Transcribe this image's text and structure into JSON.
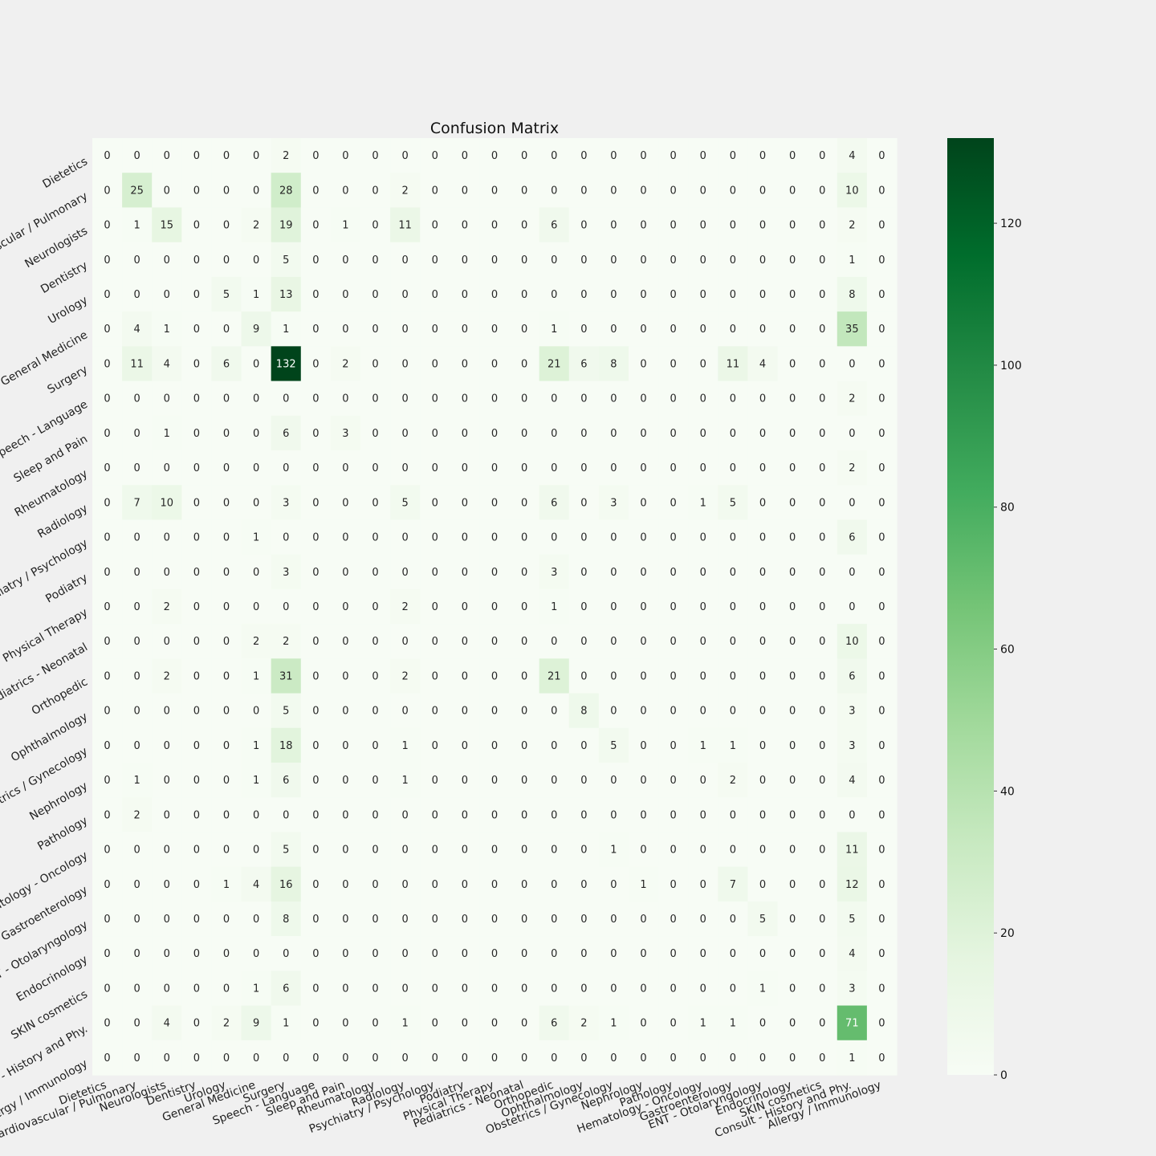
{
  "chart_data": {
    "type": "heatmap",
    "title": "Confusion Matrix",
    "xlabel": "",
    "ylabel": "",
    "labels": [
      "Dietetics",
      "Cardiovascular / Pulmonary",
      "Neurologists",
      "Dentistry",
      "Urology",
      "General Medicine",
      "Surgery",
      "Speech - Language",
      "Sleep and Pain",
      "Rheumatology",
      "Radiology",
      "Psychiatry / Psychology",
      "Podiatry",
      "Physical Therapy",
      "Pediatrics - Neonatal",
      "Orthopedic",
      "Ophthalmology",
      "Obstetrics / Gynecology",
      "Nephrology",
      "Pathology",
      "Hematology - Oncology",
      "Gastroenterology",
      "ENT - Otolaryngology",
      "Endocrinology",
      "SKIN cosmetics",
      "Consult - History and Phy.",
      "Allergy / Immunology"
    ],
    "matrix": [
      [
        0,
        0,
        0,
        0,
        0,
        0,
        2,
        0,
        0,
        0,
        0,
        0,
        0,
        0,
        0,
        0,
        0,
        0,
        0,
        0,
        0,
        0,
        0,
        0,
        0,
        4,
        0
      ],
      [
        0,
        25,
        0,
        0,
        0,
        0,
        28,
        0,
        0,
        0,
        2,
        0,
        0,
        0,
        0,
        0,
        0,
        0,
        0,
        0,
        0,
        0,
        0,
        0,
        0,
        10,
        0
      ],
      [
        0,
        1,
        15,
        0,
        0,
        2,
        19,
        0,
        1,
        0,
        11,
        0,
        0,
        0,
        0,
        6,
        0,
        0,
        0,
        0,
        0,
        0,
        0,
        0,
        0,
        2,
        0
      ],
      [
        0,
        0,
        0,
        0,
        0,
        0,
        5,
        0,
        0,
        0,
        0,
        0,
        0,
        0,
        0,
        0,
        0,
        0,
        0,
        0,
        0,
        0,
        0,
        0,
        0,
        1,
        0
      ],
      [
        0,
        0,
        0,
        0,
        5,
        1,
        13,
        0,
        0,
        0,
        0,
        0,
        0,
        0,
        0,
        0,
        0,
        0,
        0,
        0,
        0,
        0,
        0,
        0,
        0,
        8,
        0
      ],
      [
        0,
        4,
        1,
        0,
        0,
        9,
        1,
        0,
        0,
        0,
        0,
        0,
        0,
        0,
        0,
        1,
        0,
        0,
        0,
        0,
        0,
        0,
        0,
        0,
        0,
        35,
        0
      ],
      [
        0,
        11,
        4,
        0,
        6,
        0,
        132,
        0,
        2,
        0,
        0,
        0,
        0,
        0,
        0,
        21,
        6,
        8,
        0,
        0,
        0,
        11,
        4,
        0,
        0,
        0,
        0
      ],
      [
        0,
        0,
        0,
        0,
        0,
        0,
        0,
        0,
        0,
        0,
        0,
        0,
        0,
        0,
        0,
        0,
        0,
        0,
        0,
        0,
        0,
        0,
        0,
        0,
        0,
        2,
        0
      ],
      [
        0,
        0,
        1,
        0,
        0,
        0,
        6,
        0,
        3,
        0,
        0,
        0,
        0,
        0,
        0,
        0,
        0,
        0,
        0,
        0,
        0,
        0,
        0,
        0,
        0,
        0,
        0
      ],
      [
        0,
        0,
        0,
        0,
        0,
        0,
        0,
        0,
        0,
        0,
        0,
        0,
        0,
        0,
        0,
        0,
        0,
        0,
        0,
        0,
        0,
        0,
        0,
        0,
        0,
        2,
        0
      ],
      [
        0,
        7,
        10,
        0,
        0,
        0,
        3,
        0,
        0,
        0,
        5,
        0,
        0,
        0,
        0,
        6,
        0,
        3,
        0,
        0,
        1,
        5,
        0,
        0,
        0,
        0,
        0
      ],
      [
        0,
        0,
        0,
        0,
        0,
        1,
        0,
        0,
        0,
        0,
        0,
        0,
        0,
        0,
        0,
        0,
        0,
        0,
        0,
        0,
        0,
        0,
        0,
        0,
        0,
        6,
        0
      ],
      [
        0,
        0,
        0,
        0,
        0,
        0,
        3,
        0,
        0,
        0,
        0,
        0,
        0,
        0,
        0,
        3,
        0,
        0,
        0,
        0,
        0,
        0,
        0,
        0,
        0,
        0,
        0
      ],
      [
        0,
        0,
        2,
        0,
        0,
        0,
        0,
        0,
        0,
        0,
        2,
        0,
        0,
        0,
        0,
        1,
        0,
        0,
        0,
        0,
        0,
        0,
        0,
        0,
        0,
        0,
        0
      ],
      [
        0,
        0,
        0,
        0,
        0,
        2,
        2,
        0,
        0,
        0,
        0,
        0,
        0,
        0,
        0,
        0,
        0,
        0,
        0,
        0,
        0,
        0,
        0,
        0,
        0,
        10,
        0
      ],
      [
        0,
        0,
        2,
        0,
        0,
        1,
        31,
        0,
        0,
        0,
        2,
        0,
        0,
        0,
        0,
        21,
        0,
        0,
        0,
        0,
        0,
        0,
        0,
        0,
        0,
        6,
        0
      ],
      [
        0,
        0,
        0,
        0,
        0,
        0,
        5,
        0,
        0,
        0,
        0,
        0,
        0,
        0,
        0,
        0,
        8,
        0,
        0,
        0,
        0,
        0,
        0,
        0,
        0,
        3,
        0
      ],
      [
        0,
        0,
        0,
        0,
        0,
        1,
        18,
        0,
        0,
        0,
        1,
        0,
        0,
        0,
        0,
        0,
        0,
        5,
        0,
        0,
        1,
        1,
        0,
        0,
        0,
        3,
        0
      ],
      [
        0,
        1,
        0,
        0,
        0,
        1,
        6,
        0,
        0,
        0,
        1,
        0,
        0,
        0,
        0,
        0,
        0,
        0,
        0,
        0,
        0,
        2,
        0,
        0,
        0,
        4,
        0
      ],
      [
        0,
        2,
        0,
        0,
        0,
        0,
        0,
        0,
        0,
        0,
        0,
        0,
        0,
        0,
        0,
        0,
        0,
        0,
        0,
        0,
        0,
        0,
        0,
        0,
        0,
        0,
        0
      ],
      [
        0,
        0,
        0,
        0,
        0,
        0,
        5,
        0,
        0,
        0,
        0,
        0,
        0,
        0,
        0,
        0,
        0,
        1,
        0,
        0,
        0,
        0,
        0,
        0,
        0,
        11,
        0
      ],
      [
        0,
        0,
        0,
        0,
        1,
        4,
        16,
        0,
        0,
        0,
        0,
        0,
        0,
        0,
        0,
        0,
        0,
        0,
        1,
        0,
        0,
        7,
        0,
        0,
        0,
        12,
        0
      ],
      [
        0,
        0,
        0,
        0,
        0,
        0,
        8,
        0,
        0,
        0,
        0,
        0,
        0,
        0,
        0,
        0,
        0,
        0,
        0,
        0,
        0,
        0,
        5,
        0,
        0,
        5,
        0
      ],
      [
        0,
        0,
        0,
        0,
        0,
        0,
        0,
        0,
        0,
        0,
        0,
        0,
        0,
        0,
        0,
        0,
        0,
        0,
        0,
        0,
        0,
        0,
        0,
        0,
        0,
        4,
        0
      ],
      [
        0,
        0,
        0,
        0,
        0,
        1,
        6,
        0,
        0,
        0,
        0,
        0,
        0,
        0,
        0,
        0,
        0,
        0,
        0,
        0,
        0,
        0,
        1,
        0,
        0,
        3,
        0
      ],
      [
        0,
        0,
        4,
        0,
        2,
        9,
        1,
        0,
        0,
        0,
        1,
        0,
        0,
        0,
        0,
        6,
        2,
        1,
        0,
        0,
        1,
        1,
        0,
        0,
        0,
        71,
        0
      ],
      [
        0,
        0,
        0,
        0,
        0,
        0,
        0,
        0,
        0,
        0,
        0,
        0,
        0,
        0,
        0,
        0,
        0,
        0,
        0,
        0,
        0,
        0,
        0,
        0,
        0,
        1,
        0
      ]
    ],
    "colorbar": {
      "min": 0,
      "max": 132,
      "ticks": [
        0,
        20,
        40,
        60,
        80,
        100,
        120
      ]
    },
    "colormap": "Greens",
    "colors": [
      "#f7fcf5",
      "#e5f5e0",
      "#c7e9c0",
      "#a1d99b",
      "#74c476",
      "#41ab5d",
      "#238b45",
      "#006d2c",
      "#00441b"
    ],
    "grid": false
  }
}
